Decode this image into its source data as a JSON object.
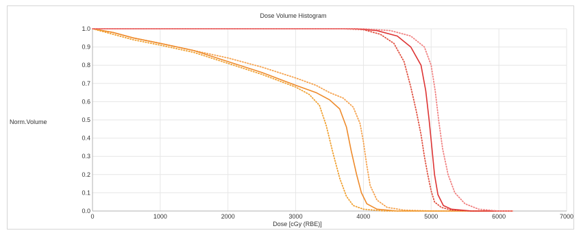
{
  "chart_data": {
    "type": "line",
    "title": "Dose Volume Histogram",
    "xlabel": "Dose [cGy (RBE)]",
    "ylabel": "Norm.Volume",
    "xlim": [
      0,
      7000
    ],
    "ylim": [
      0,
      1.0
    ],
    "x_ticks": [
      0,
      1000,
      2000,
      3000,
      4000,
      5000,
      6000,
      7000
    ],
    "y_ticks": [
      0.0,
      0.1,
      0.2,
      0.3,
      0.4,
      0.5,
      0.6,
      0.7,
      0.8,
      0.9,
      1.0
    ],
    "x_tick_labels": [
      "0",
      "1000",
      "2000",
      "3000",
      "4000",
      "5000",
      "6000",
      "7000"
    ],
    "y_tick_labels": [
      "0.0",
      "0.1",
      "0.2",
      "0.3",
      "0.4",
      "0.5",
      "0.6",
      "0.7",
      "0.8",
      "0.9",
      "1.0"
    ],
    "grid": true,
    "legend": "none",
    "series": [
      {
        "color": "#f5a04a",
        "style": "dotted",
        "points": [
          [
            0,
            1.0
          ],
          [
            300,
            0.98
          ],
          [
            600,
            0.95
          ],
          [
            1000,
            0.92
          ],
          [
            1500,
            0.88
          ],
          [
            2000,
            0.84
          ],
          [
            2500,
            0.79
          ],
          [
            3000,
            0.73
          ],
          [
            3300,
            0.69
          ],
          [
            3500,
            0.65
          ],
          [
            3700,
            0.62
          ],
          [
            3850,
            0.57
          ],
          [
            3950,
            0.48
          ],
          [
            4000,
            0.38
          ],
          [
            4050,
            0.25
          ],
          [
            4100,
            0.14
          ],
          [
            4200,
            0.06
          ],
          [
            4350,
            0.02
          ],
          [
            4600,
            0.005
          ],
          [
            5000,
            0.0
          ],
          [
            6200,
            0.0
          ]
        ]
      },
      {
        "color": "#ee8a2a",
        "style": "solid",
        "points": [
          [
            0,
            1.0
          ],
          [
            300,
            0.98
          ],
          [
            600,
            0.95
          ],
          [
            1000,
            0.92
          ],
          [
            1500,
            0.88
          ],
          [
            2000,
            0.82
          ],
          [
            2500,
            0.76
          ],
          [
            3000,
            0.69
          ],
          [
            3300,
            0.65
          ],
          [
            3500,
            0.61
          ],
          [
            3650,
            0.56
          ],
          [
            3750,
            0.46
          ],
          [
            3820,
            0.33
          ],
          [
            3900,
            0.2
          ],
          [
            3970,
            0.1
          ],
          [
            4050,
            0.04
          ],
          [
            4200,
            0.01
          ],
          [
            4500,
            0.0
          ],
          [
            6200,
            0.0
          ]
        ]
      },
      {
        "color": "#f0a030",
        "style": "dotted",
        "points": [
          [
            0,
            1.0
          ],
          [
            300,
            0.97
          ],
          [
            600,
            0.94
          ],
          [
            1000,
            0.91
          ],
          [
            1500,
            0.87
          ],
          [
            2000,
            0.81
          ],
          [
            2500,
            0.75
          ],
          [
            3000,
            0.68
          ],
          [
            3200,
            0.64
          ],
          [
            3350,
            0.58
          ],
          [
            3450,
            0.47
          ],
          [
            3550,
            0.32
          ],
          [
            3650,
            0.18
          ],
          [
            3750,
            0.08
          ],
          [
            3850,
            0.03
          ],
          [
            4000,
            0.01
          ],
          [
            4300,
            0.0
          ],
          [
            6200,
            0.0
          ]
        ]
      },
      {
        "color": "#e05040",
        "style": "dotted",
        "points": [
          [
            0,
            1.0
          ],
          [
            1000,
            1.0
          ],
          [
            2000,
            1.0
          ],
          [
            3000,
            1.0
          ],
          [
            3700,
            1.0
          ],
          [
            4000,
            0.995
          ],
          [
            4250,
            0.97
          ],
          [
            4450,
            0.92
          ],
          [
            4600,
            0.82
          ],
          [
            4700,
            0.68
          ],
          [
            4780,
            0.55
          ],
          [
            4850,
            0.42
          ],
          [
            4900,
            0.3
          ],
          [
            4950,
            0.2
          ],
          [
            5000,
            0.11
          ],
          [
            5050,
            0.05
          ],
          [
            5150,
            0.02
          ],
          [
            5300,
            0.005
          ],
          [
            5600,
            0.0
          ],
          [
            6200,
            0.0
          ]
        ]
      },
      {
        "color": "#dd3333",
        "style": "solid",
        "points": [
          [
            0,
            1.0
          ],
          [
            1000,
            1.0
          ],
          [
            2000,
            1.0
          ],
          [
            3000,
            1.0
          ],
          [
            3900,
            1.0
          ],
          [
            4200,
            0.99
          ],
          [
            4500,
            0.96
          ],
          [
            4700,
            0.9
          ],
          [
            4850,
            0.8
          ],
          [
            4920,
            0.66
          ],
          [
            4970,
            0.5
          ],
          [
            5010,
            0.35
          ],
          [
            5050,
            0.2
          ],
          [
            5100,
            0.09
          ],
          [
            5180,
            0.03
          ],
          [
            5300,
            0.01
          ],
          [
            5600,
            0.0
          ],
          [
            6200,
            0.0
          ]
        ]
      },
      {
        "color": "#f08080",
        "style": "dotted",
        "points": [
          [
            0,
            1.0
          ],
          [
            1000,
            1.0
          ],
          [
            2000,
            1.0
          ],
          [
            3000,
            1.0
          ],
          [
            4000,
            1.0
          ],
          [
            4400,
            0.99
          ],
          [
            4700,
            0.96
          ],
          [
            4900,
            0.9
          ],
          [
            5000,
            0.8
          ],
          [
            5060,
            0.66
          ],
          [
            5110,
            0.5
          ],
          [
            5170,
            0.34
          ],
          [
            5250,
            0.2
          ],
          [
            5350,
            0.1
          ],
          [
            5500,
            0.04
          ],
          [
            5700,
            0.01
          ],
          [
            6000,
            0.0
          ],
          [
            6200,
            0.0
          ]
        ]
      }
    ]
  }
}
